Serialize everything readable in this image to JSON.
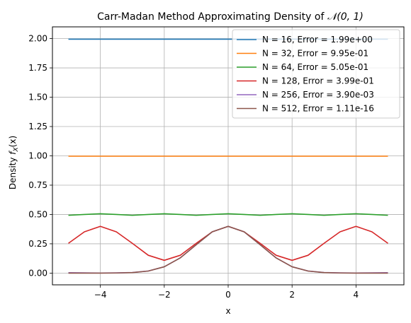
{
  "chart_data": {
    "type": "line",
    "title_main": "Carr-Madan Method Approximating Density of ",
    "title_dist": "𝒩(0, 1)",
    "xlabel": "x",
    "ylabel_main": "Density ",
    "ylabel_f": "f",
    "ylabel_sub": "X",
    "ylabel_arg": "(x)",
    "xlim": [
      -5.5,
      5.5
    ],
    "ylim": [
      -0.1,
      2.1
    ],
    "x_ticks": [
      -4,
      -2,
      0,
      2,
      4
    ],
    "x_tick_labels": [
      "−4",
      "−2",
      "0",
      "2",
      "4"
    ],
    "y_ticks": [
      0.0,
      0.25,
      0.5,
      0.75,
      1.0,
      1.25,
      1.5,
      1.75,
      2.0
    ],
    "y_tick_labels": [
      "0.00",
      "0.25",
      "0.50",
      "0.75",
      "1.00",
      "1.25",
      "1.50",
      "1.75",
      "2.00"
    ],
    "grid": true,
    "legend_position": "top-right",
    "x": [
      -5.0,
      -4.5,
      -4.0,
      -3.5,
      -3.0,
      -2.5,
      -2.0,
      -1.5,
      -1.0,
      -0.5,
      0.0,
      0.5,
      1.0,
      1.5,
      2.0,
      2.5,
      3.0,
      3.5,
      4.0,
      4.5,
      5.0
    ],
    "series": [
      {
        "name": "N = 16, Error = 1.99e+00",
        "color": "#1f77b4",
        "values": [
          1.995,
          1.995,
          1.995,
          1.995,
          1.995,
          1.995,
          1.995,
          1.995,
          1.995,
          1.995,
          1.995,
          1.995,
          1.995,
          1.995,
          1.995,
          1.995,
          1.995,
          1.995,
          1.995,
          1.995,
          1.995
        ]
      },
      {
        "name": "N = 32, Error = 9.95e-01",
        "color": "#ff7f0e",
        "values": [
          0.997,
          0.997,
          0.997,
          0.997,
          0.997,
          0.997,
          0.997,
          0.997,
          0.997,
          0.997,
          0.997,
          0.997,
          0.997,
          0.997,
          0.997,
          0.997,
          0.997,
          0.997,
          0.997,
          0.997,
          0.997
        ]
      },
      {
        "name": "N = 64, Error = 5.05e-01",
        "color": "#2ca02c",
        "values": [
          0.493,
          0.5,
          0.506,
          0.5,
          0.493,
          0.5,
          0.506,
          0.5,
          0.493,
          0.5,
          0.506,
          0.5,
          0.493,
          0.5,
          0.506,
          0.5,
          0.493,
          0.5,
          0.506,
          0.5,
          0.493
        ]
      },
      {
        "name": "N = 128, Error = 3.99e-01",
        "color": "#d62728",
        "values": [
          0.254,
          0.352,
          0.399,
          0.352,
          0.254,
          0.152,
          0.109,
          0.152,
          0.254,
          0.352,
          0.399,
          0.352,
          0.254,
          0.152,
          0.109,
          0.152,
          0.254,
          0.352,
          0.399,
          0.352,
          0.254
        ]
      },
      {
        "name": "N = 256, Error = 3.90e-03",
        "color": "#9467bd",
        "values": [
          0.004,
          0.002,
          0.001,
          0.002,
          0.005,
          0.018,
          0.054,
          0.13,
          0.242,
          0.352,
          0.399,
          0.352,
          0.242,
          0.13,
          0.054,
          0.018,
          0.005,
          0.002,
          0.001,
          0.002,
          0.004
        ]
      },
      {
        "name": "N = 512, Error = 1.11e-16",
        "color": "#8c564b",
        "values": [
          1.5e-06,
          1.6e-05,
          0.000134,
          0.000873,
          0.004432,
          0.017528,
          0.053991,
          0.129518,
          0.241971,
          0.352065,
          0.398942,
          0.352065,
          0.241971,
          0.129518,
          0.053991,
          0.017528,
          0.004432,
          0.000873,
          0.000134,
          1.6e-05,
          1.5e-06
        ]
      }
    ]
  }
}
